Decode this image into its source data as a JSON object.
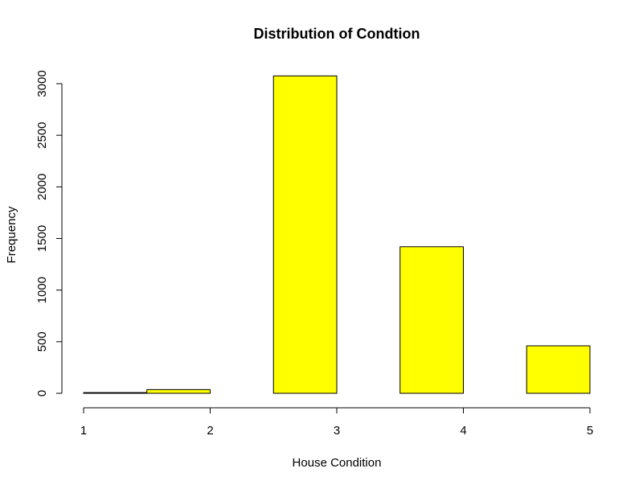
{
  "chart_data": {
    "type": "bar",
    "title": "Distribution of Condtion",
    "xlabel": "House Condition",
    "ylabel": "Frequency",
    "bins": [
      {
        "start": 1.0,
        "end": 1.5,
        "value": 7
      },
      {
        "start": 1.5,
        "end": 2.0,
        "value": 36
      },
      {
        "start": 2.0,
        "end": 2.5,
        "value": 0
      },
      {
        "start": 2.5,
        "end": 3.0,
        "value": 3075
      },
      {
        "start": 3.0,
        "end": 3.5,
        "value": 0
      },
      {
        "start": 3.5,
        "end": 4.0,
        "value": 1420
      },
      {
        "start": 4.0,
        "end": 4.5,
        "value": 0
      },
      {
        "start": 4.5,
        "end": 5.0,
        "value": 460
      }
    ],
    "xlim": [
      1,
      5
    ],
    "ylim": [
      0,
      3000
    ],
    "xticks": [
      "1",
      "2",
      "3",
      "4",
      "5"
    ],
    "yticks": [
      "0",
      "500",
      "1000",
      "1500",
      "2000",
      "2500",
      "3000"
    ],
    "bar_color": "#ffff00",
    "grid": false
  }
}
